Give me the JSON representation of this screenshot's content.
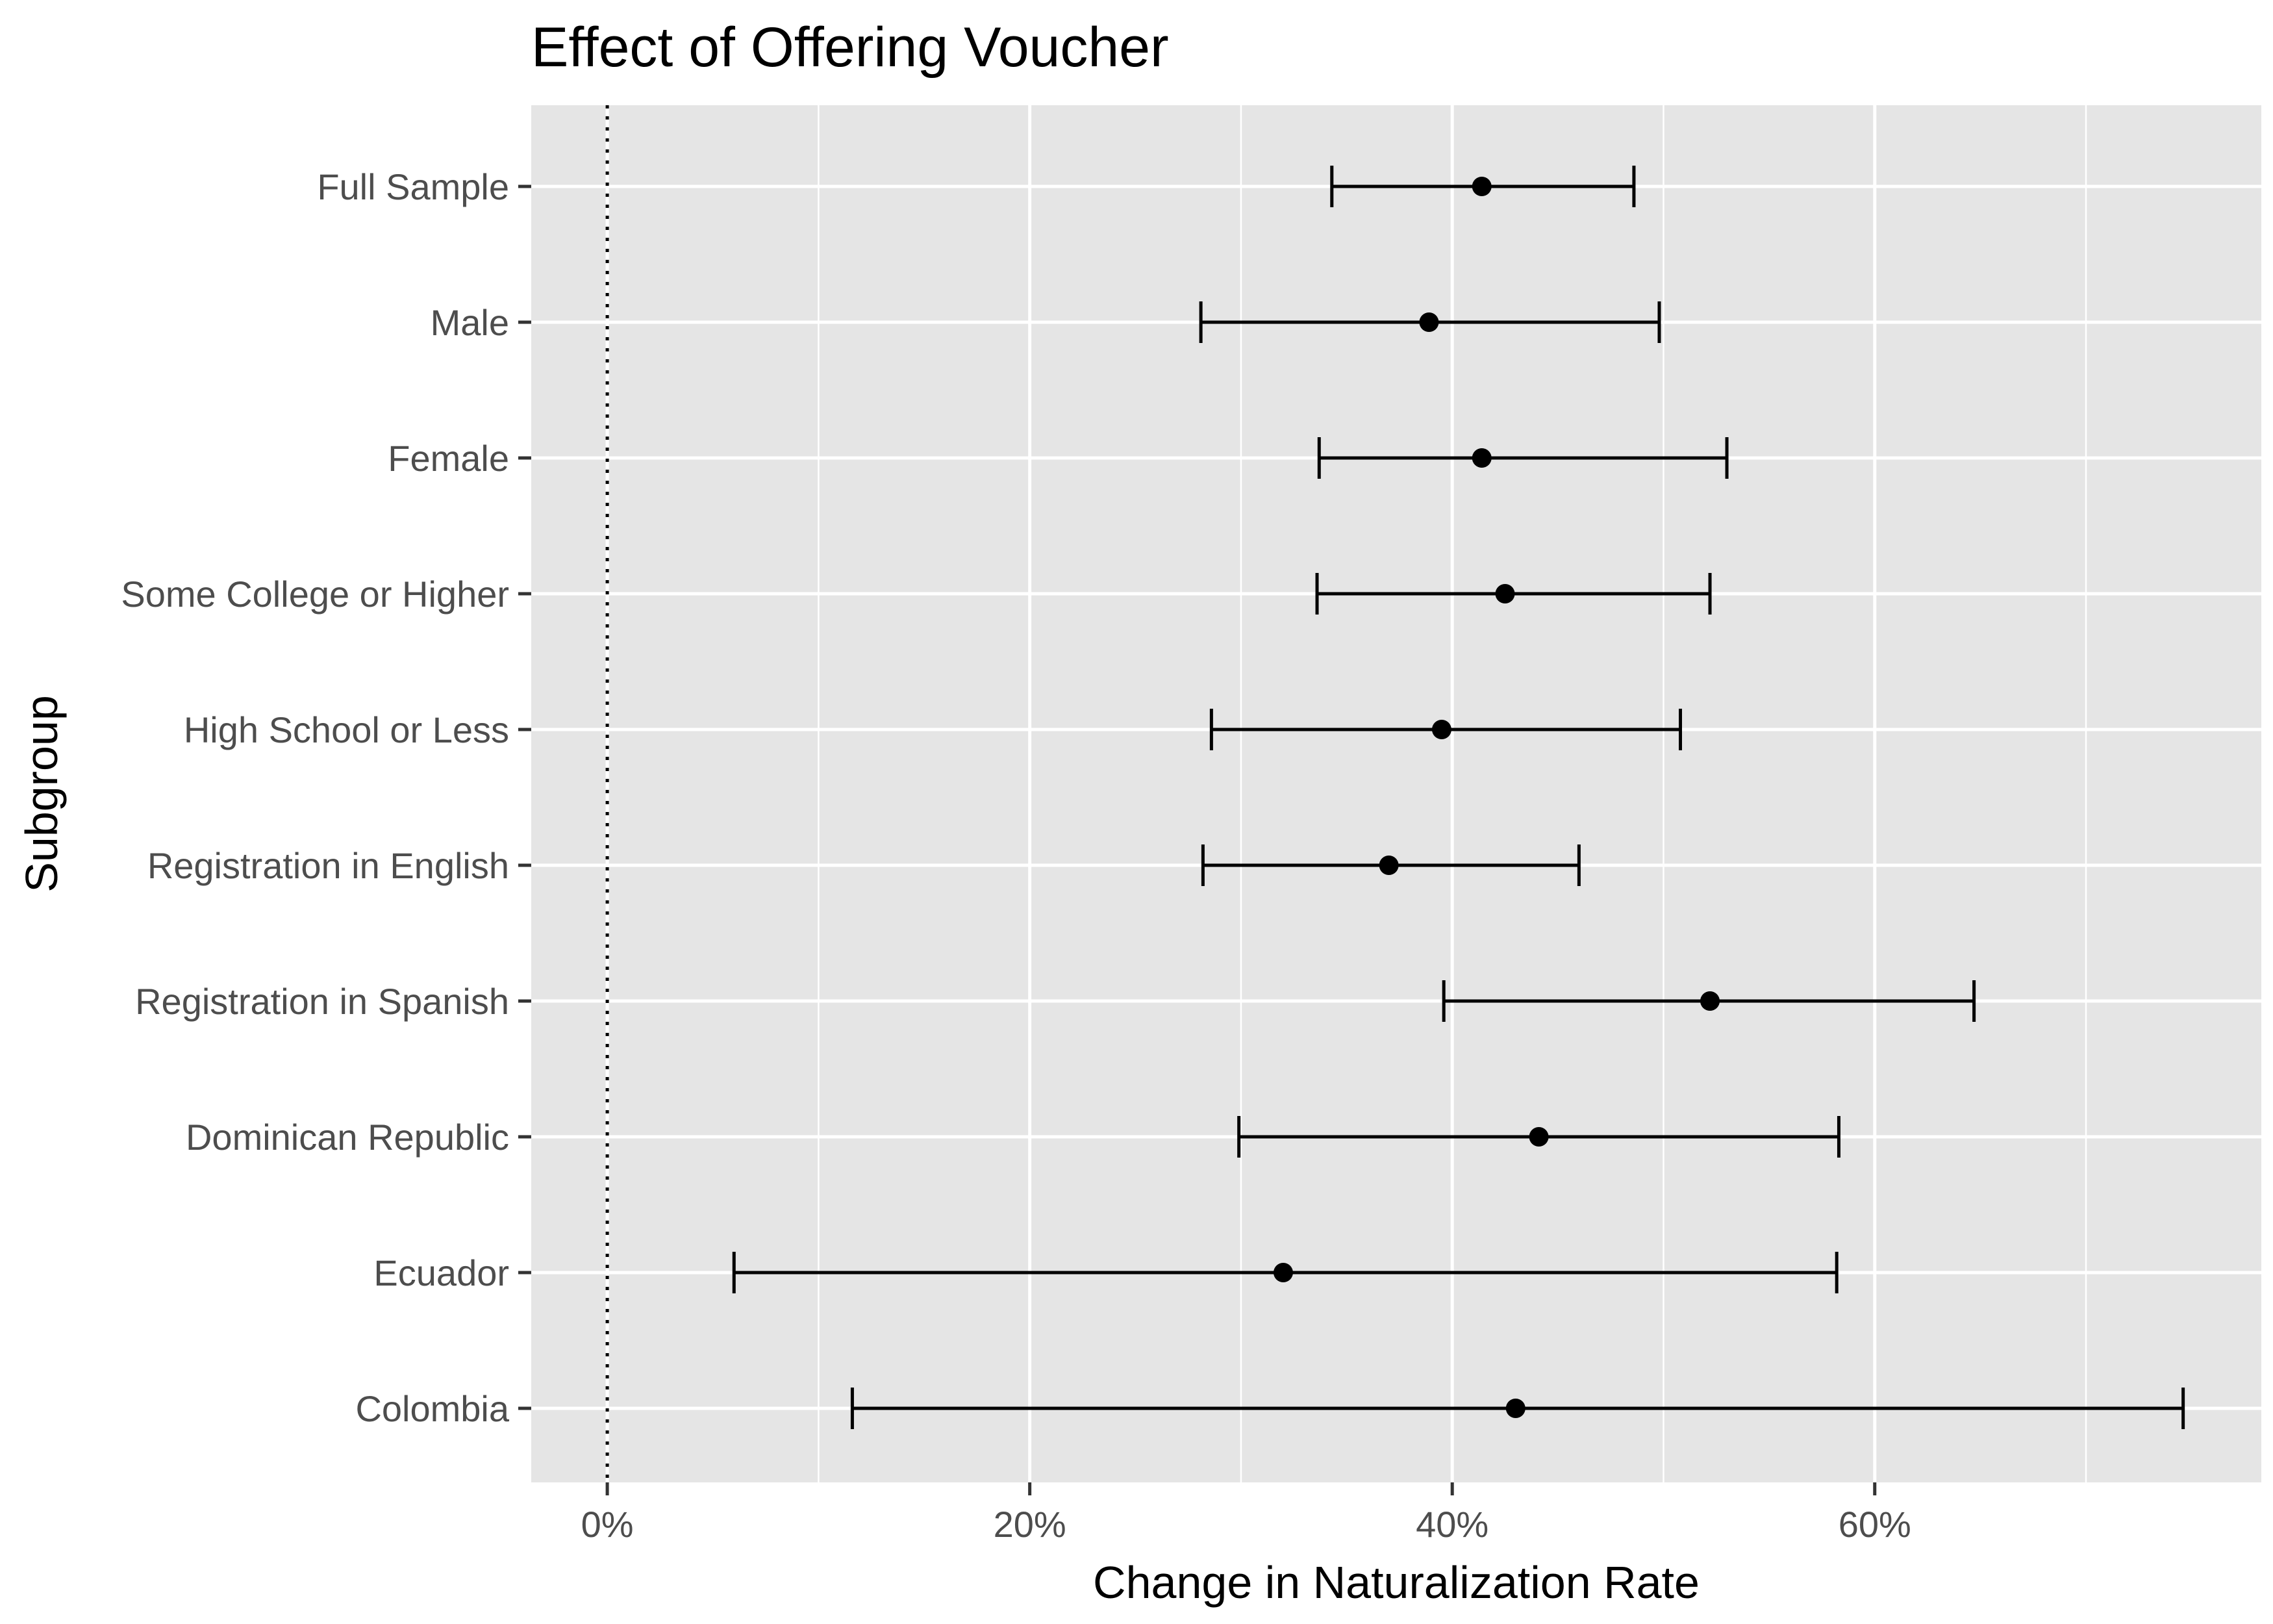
{
  "chart_data": {
    "type": "forest-plot",
    "title": "Effect of Offering Voucher",
    "xlabel": "Change in Naturalization Rate",
    "ylabel": "Subgroup",
    "x_tick_values": [
      0,
      0.2,
      0.4,
      0.6
    ],
    "x_tick_labels": [
      "0%",
      "20%",
      "40%",
      "60%"
    ],
    "xlim": [
      -0.036,
      0.783
    ],
    "reference_line": {
      "x": 0,
      "style": "dotted"
    },
    "grid": true,
    "panel_background": "#e5e5e5",
    "point_color": "#000000",
    "categories": [
      "Full Sample",
      "Male",
      "Female",
      "Some College or Higher",
      "High School or Less",
      "Registration in English",
      "Registration in Spanish",
      "Dominican Republic",
      "Ecuador",
      "Colombia"
    ],
    "estimates": [
      0.414,
      0.389,
      0.414,
      0.425,
      0.395,
      0.37,
      0.522,
      0.441,
      0.32,
      0.43
    ],
    "ci_low": [
      0.343,
      0.281,
      0.337,
      0.336,
      0.286,
      0.282,
      0.396,
      0.299,
      0.06,
      0.116
    ],
    "ci_high": [
      0.486,
      0.498,
      0.53,
      0.522,
      0.508,
      0.46,
      0.647,
      0.583,
      0.582,
      0.746
    ]
  }
}
